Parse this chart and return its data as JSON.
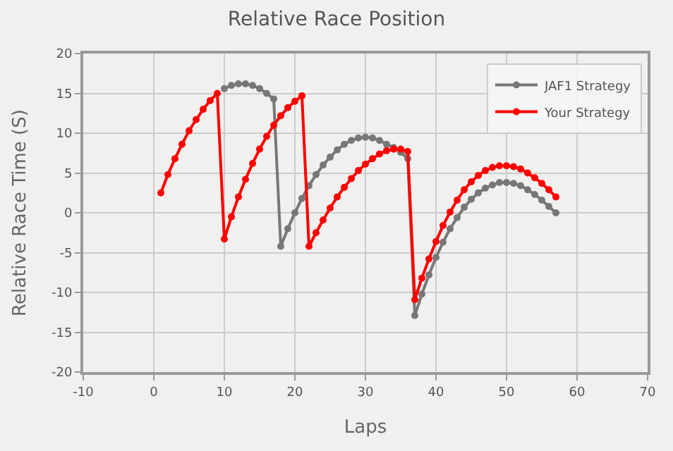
{
  "chart_data": {
    "type": "line",
    "title": "Relative Race Position",
    "xlabel": "Laps",
    "ylabel": "Relative Race Time (S)",
    "x": [
      1,
      2,
      3,
      4,
      5,
      6,
      7,
      8,
      9,
      10,
      11,
      12,
      13,
      14,
      15,
      16,
      17,
      18,
      19,
      20,
      21,
      22,
      23,
      24,
      25,
      26,
      27,
      28,
      29,
      30,
      31,
      32,
      33,
      34,
      35,
      36,
      37,
      38,
      39,
      40,
      41,
      42,
      43,
      44,
      45,
      46,
      47,
      48,
      49,
      50,
      51,
      52,
      53,
      54,
      55,
      56,
      57
    ],
    "series": [
      {
        "name": "JAF1 Strategy",
        "color": "#777777",
        "values": [
          null,
          null,
          null,
          null,
          null,
          null,
          null,
          null,
          null,
          15.6,
          16.0,
          16.2,
          16.2,
          16.0,
          15.6,
          15.0,
          14.3,
          -4.2,
          -2.0,
          0.0,
          1.8,
          3.4,
          4.8,
          6.0,
          7.0,
          7.9,
          8.6,
          9.1,
          9.4,
          9.5,
          9.4,
          9.1,
          8.6,
          8.2,
          7.6,
          6.8,
          -12.9,
          -10.2,
          -7.8,
          -5.6,
          -3.7,
          -2.0,
          -0.6,
          0.7,
          1.7,
          2.5,
          3.1,
          3.5,
          3.8,
          3.8,
          3.7,
          3.4,
          2.9,
          2.3,
          1.6,
          0.8,
          0.0
        ]
      },
      {
        "name": "Your Strategy",
        "color": "#ff0000",
        "values": [
          2.5,
          4.8,
          6.8,
          8.6,
          10.3,
          11.7,
          13.0,
          14.1,
          15.0,
          -3.3,
          -0.5,
          2.0,
          4.2,
          6.2,
          8.0,
          9.6,
          11.0,
          12.2,
          13.2,
          14.0,
          14.7,
          -4.2,
          -2.5,
          -0.9,
          0.6,
          2.0,
          3.2,
          4.3,
          5.3,
          6.1,
          6.8,
          7.4,
          7.8,
          8.0,
          8.0,
          7.7,
          -10.9,
          -8.2,
          -5.8,
          -3.6,
          -1.6,
          0.1,
          1.6,
          2.9,
          3.9,
          4.7,
          5.3,
          5.7,
          5.9,
          5.9,
          5.8,
          5.5,
          5.0,
          4.4,
          3.7,
          2.9,
          2.0
        ]
      }
    ],
    "xlim": [
      -10,
      70
    ],
    "xticks": [
      -10,
      0,
      10,
      20,
      30,
      40,
      50,
      60,
      70
    ],
    "ylim": [
      -20,
      20
    ],
    "yticks": [
      -20,
      -15,
      -10,
      -5,
      0,
      5,
      10,
      15,
      20
    ],
    "grid": true,
    "legend": "top right",
    "marker": "circle",
    "line_style": "solid"
  }
}
